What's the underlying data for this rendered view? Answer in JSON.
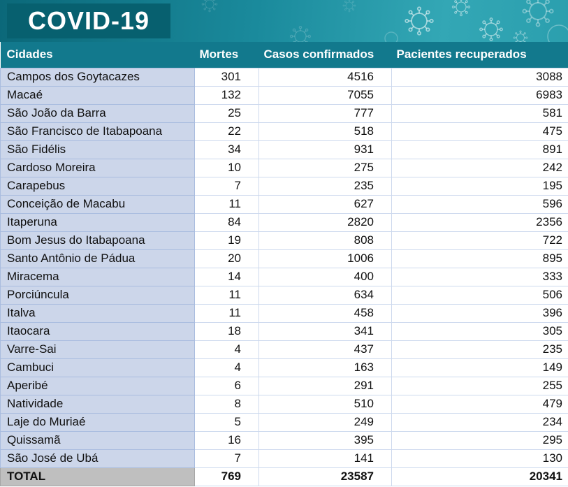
{
  "banner": {
    "title": "COVID-19"
  },
  "colors": {
    "banner_left": "#0b6879",
    "banner_right": "#33a7b5",
    "title_box": "#07606f",
    "header_bg": "#12798d",
    "city_bg": "#ccd6ea",
    "city_border": "#a9bcdf",
    "num_border": "#cdd9ee",
    "total_bg": "#bfbfbf",
    "total_border": "#a6a6a6",
    "text": "#111111",
    "header_text": "#ffffff"
  },
  "chart_data": {
    "type": "table",
    "title": "COVID-19",
    "columns": [
      "Cidades",
      "Mortes",
      "Casos confirmados",
      "Pacientes recuperados"
    ],
    "rows": [
      [
        "Campos dos Goytacazes",
        301,
        4516,
        3088
      ],
      [
        "Macaé",
        132,
        7055,
        6983
      ],
      [
        "São João da Barra",
        25,
        777,
        581
      ],
      [
        "São Francisco de Itabapoana",
        22,
        518,
        475
      ],
      [
        "São Fidélis",
        34,
        931,
        891
      ],
      [
        "Cardoso Moreira",
        10,
        275,
        242
      ],
      [
        "Carapebus",
        7,
        235,
        195
      ],
      [
        "Conceição de Macabu",
        11,
        627,
        596
      ],
      [
        "Itaperuna",
        84,
        2820,
        2356
      ],
      [
        "Bom Jesus do Itabapoana",
        19,
        808,
        722
      ],
      [
        "Santo Antônio de Pádua",
        20,
        1006,
        895
      ],
      [
        "Miracema",
        14,
        400,
        333
      ],
      [
        "Porciúncula",
        11,
        634,
        506
      ],
      [
        "Italva",
        11,
        458,
        396
      ],
      [
        "Itaocara",
        18,
        341,
        305
      ],
      [
        "Varre-Sai",
        4,
        437,
        235
      ],
      [
        "Cambuci",
        4,
        163,
        149
      ],
      [
        "Aperibé",
        6,
        291,
        255
      ],
      [
        "Natividade",
        8,
        510,
        479
      ],
      [
        "Laje do Muriaé",
        5,
        249,
        234
      ],
      [
        "Quissamã",
        16,
        395,
        295
      ],
      [
        "São José de Ubá",
        7,
        141,
        130
      ]
    ],
    "total_row": [
      "TOTAL",
      769,
      23587,
      20341
    ]
  }
}
